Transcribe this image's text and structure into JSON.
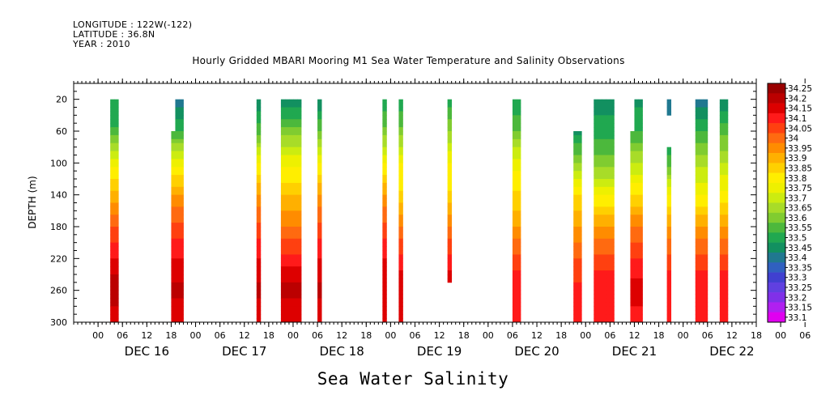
{
  "header": {
    "longitude": "LONGITUDE : 122W(-122)",
    "latitude": "LATITUDE : 36.8N",
    "year": "YEAR : 2010"
  },
  "chart_data": {
    "type": "heatmap",
    "title": "Hourly Gridded MBARI Mooring M1 Sea Water Temperature and Salinity Observations",
    "xlabel": "Sea Water Salinity",
    "ylabel": "DEPTH (m)",
    "x_range_hours_dec": [
      15.75,
      22.75
    ],
    "ylim": [
      0,
      300
    ],
    "y_ticks": [
      20,
      60,
      100,
      140,
      180,
      220,
      260,
      300
    ],
    "x_hour_ticks": [
      "00",
      "06",
      "12",
      "18",
      "00",
      "06",
      "12",
      "18",
      "00",
      "06",
      "12",
      "18",
      "00",
      "06",
      "12",
      "18",
      "00",
      "06",
      "12",
      "18",
      "00",
      "06",
      "12",
      "18",
      "00",
      "06",
      "12",
      "18",
      "00",
      "06",
      "12",
      "18"
    ],
    "x_day_labels": [
      "DEC 16",
      "DEC 17",
      "DEC 18",
      "DEC 19",
      "DEC 20",
      "DEC 21",
      "DEC 22"
    ],
    "colorbar": {
      "levels": [
        "34.25",
        "34.2",
        "34.15",
        "34.1",
        "34.05",
        "34",
        "33.95",
        "33.9",
        "33.85",
        "33.8",
        "33.75",
        "33.7",
        "33.65",
        "33.6",
        "33.55",
        "33.5",
        "33.45",
        "33.4",
        "33.35",
        "33.3",
        "33.25",
        "33.2",
        "33.15",
        "33.1"
      ],
      "colors": [
        "#990000",
        "#bb0000",
        "#dd0000",
        "#ff1a1a",
        "#ff4010",
        "#ff6a10",
        "#ff8c00",
        "#ffb000",
        "#ffd000",
        "#ffee00",
        "#eef000",
        "#ccec10",
        "#a8dc28",
        "#80cc30",
        "#4cb83c",
        "#20a850",
        "#129060",
        "#207890",
        "#3060c0",
        "#4040d0",
        "#6040e0",
        "#8030e8",
        "#b020f0",
        "#e000f0"
      ]
    },
    "gridded_salinity_columns": [
      {
        "start": "DEC 16 03:00",
        "end": "DEC 16 05:00",
        "top_m": 20,
        "profile": [
          [
            20,
            33.5
          ],
          [
            60,
            33.56
          ],
          [
            100,
            33.78
          ],
          [
            140,
            33.92
          ],
          [
            180,
            34.05
          ],
          [
            220,
            34.15
          ],
          [
            260,
            34.25
          ],
          [
            300,
            34.15
          ]
        ]
      },
      {
        "start": "DEC 16 18:00",
        "end": "DEC 16 21:00",
        "top_m": 20,
        "top_m_first_hours": 60,
        "profile": [
          [
            20,
            33.42
          ],
          [
            60,
            33.55
          ],
          [
            100,
            33.78
          ],
          [
            140,
            33.95
          ],
          [
            180,
            34.07
          ],
          [
            220,
            34.15
          ],
          [
            260,
            34.22
          ],
          [
            300,
            34.15
          ]
        ]
      },
      {
        "start": "DEC 17 15:00",
        "end": "DEC 17 16:00",
        "top_m": 20,
        "profile": [
          [
            20,
            33.45
          ],
          [
            60,
            33.58
          ],
          [
            100,
            33.8
          ],
          [
            140,
            33.95
          ],
          [
            180,
            34.07
          ],
          [
            220,
            34.15
          ],
          [
            260,
            34.22
          ],
          [
            300,
            34.15
          ]
        ]
      },
      {
        "start": "DEC 17 21:00",
        "end": "DEC 18 02:00",
        "top_m": 20,
        "profile": [
          [
            20,
            33.45
          ],
          [
            60,
            33.62
          ],
          [
            100,
            33.78
          ],
          [
            140,
            33.9
          ],
          [
            180,
            34.0
          ],
          [
            220,
            34.12
          ],
          [
            260,
            34.22
          ],
          [
            300,
            34.15
          ]
        ]
      },
      {
        "start": "DEC 18 06:00",
        "end": "DEC 18 07:00",
        "top_m": 20,
        "profile": [
          [
            20,
            33.45
          ],
          [
            60,
            33.6
          ],
          [
            100,
            33.8
          ],
          [
            140,
            33.95
          ],
          [
            180,
            34.07
          ],
          [
            220,
            34.15
          ],
          [
            260,
            34.22
          ],
          [
            300,
            34.15
          ]
        ]
      },
      {
        "start": "DEC 18 22:00",
        "end": "DEC 18 23:00",
        "top_m": 20,
        "profile": [
          [
            20,
            33.5
          ],
          [
            60,
            33.62
          ],
          [
            100,
            33.8
          ],
          [
            140,
            33.95
          ],
          [
            180,
            34.07
          ],
          [
            220,
            34.15
          ],
          [
            260,
            34.2
          ],
          [
            300,
            34.15
          ]
        ]
      },
      {
        "start": "DEC 19 02:00",
        "end": "DEC 19 03:00",
        "top_m": 20,
        "profile": [
          [
            20,
            33.5
          ],
          [
            60,
            33.62
          ],
          [
            100,
            33.8
          ],
          [
            140,
            33.86
          ],
          [
            180,
            34.0
          ],
          [
            220,
            34.12
          ],
          [
            260,
            34.2
          ],
          [
            300,
            34.15
          ]
        ]
      },
      {
        "start": "DEC 19 14:00",
        "end": "DEC 19 15:00",
        "top_m": 20,
        "bottom_m": 250,
        "profile": [
          [
            20,
            33.52
          ],
          [
            60,
            33.65
          ],
          [
            100,
            33.8
          ],
          [
            140,
            33.86
          ],
          [
            180,
            34.0
          ],
          [
            220,
            34.12
          ],
          [
            250,
            34.18
          ]
        ]
      },
      {
        "start": "DEC 20 06:00",
        "end": "DEC 20 08:00",
        "top_m": 20,
        "profile": [
          [
            20,
            33.5
          ],
          [
            60,
            33.6
          ],
          [
            100,
            33.78
          ],
          [
            140,
            33.86
          ],
          [
            180,
            33.95
          ],
          [
            220,
            34.07
          ],
          [
            260,
            34.15
          ],
          [
            300,
            34.12
          ]
        ]
      },
      {
        "start": "DEC 20 21:00",
        "end": "DEC 20 23:00",
        "top_m": 60,
        "profile": [
          [
            60,
            33.48
          ],
          [
            100,
            33.65
          ],
          [
            140,
            33.85
          ],
          [
            180,
            33.95
          ],
          [
            220,
            34.05
          ],
          [
            260,
            34.12
          ],
          [
            300,
            34.12
          ]
        ]
      },
      {
        "start": "DEC 21 02:00",
        "end": "DEC 21 07:00",
        "top_m": 20,
        "profile": [
          [
            20,
            33.48
          ],
          [
            60,
            33.52
          ],
          [
            100,
            33.62
          ],
          [
            140,
            33.8
          ],
          [
            180,
            33.95
          ],
          [
            220,
            34.07
          ],
          [
            260,
            34.15
          ],
          [
            300,
            34.12
          ]
        ]
      },
      {
        "start": "DEC 21 11:00",
        "end": "DEC 21 14:00",
        "top_m": 20,
        "top_m_first_hours": 60,
        "profile": [
          [
            20,
            33.48
          ],
          [
            60,
            33.55
          ],
          [
            100,
            33.7
          ],
          [
            140,
            33.85
          ],
          [
            180,
            34.0
          ],
          [
            220,
            34.1
          ],
          [
            260,
            34.18
          ],
          [
            300,
            34.12
          ]
        ]
      },
      {
        "start": "DEC 21 20:00",
        "end": "DEC 21 21:00",
        "top_m": 20,
        "gap_m": [
          42,
          78
        ],
        "profile": [
          [
            20,
            33.4
          ],
          [
            60,
            33.45
          ],
          [
            100,
            33.58
          ],
          [
            140,
            33.8
          ],
          [
            180,
            33.95
          ],
          [
            220,
            34.07
          ],
          [
            260,
            34.15
          ],
          [
            300,
            34.12
          ]
        ]
      },
      {
        "start": "DEC 22 03:00",
        "end": "DEC 22 06:00",
        "top_m": 20,
        "profile": [
          [
            20,
            33.42
          ],
          [
            60,
            33.55
          ],
          [
            100,
            33.68
          ],
          [
            140,
            33.8
          ],
          [
            180,
            33.95
          ],
          [
            220,
            34.07
          ],
          [
            260,
            34.15
          ],
          [
            300,
            34.12
          ]
        ]
      },
      {
        "start": "DEC 22 09:00",
        "end": "DEC 22 11:00",
        "top_m": 20,
        "profile": [
          [
            20,
            33.45
          ],
          [
            60,
            33.58
          ],
          [
            100,
            33.7
          ],
          [
            140,
            33.82
          ],
          [
            180,
            33.95
          ],
          [
            220,
            34.07
          ],
          [
            260,
            34.15
          ],
          [
            300,
            34.12
          ]
        ]
      }
    ]
  }
}
